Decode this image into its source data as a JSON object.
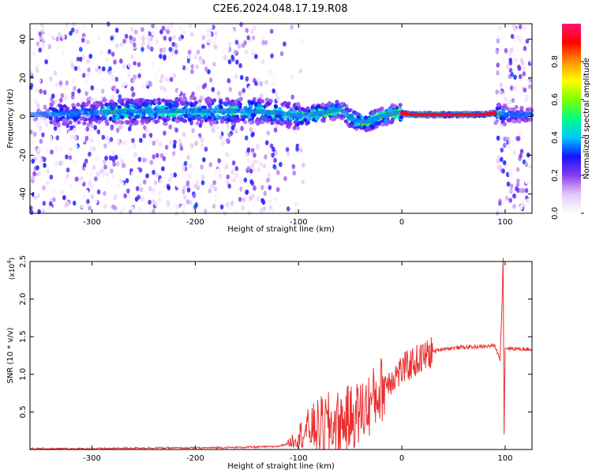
{
  "title": "C2E6.2024.048.17.19.R08",
  "chart_data": [
    {
      "type": "heatmap",
      "xlabel": "Height of straight line (km)",
      "ylabel": "Frequency (Hz)",
      "xlim": [
        -360,
        126
      ],
      "ylim": [
        -50,
        48
      ],
      "xticks": [
        -300,
        -200,
        -100,
        0,
        100
      ],
      "yticks": [
        -40,
        -20,
        0,
        20,
        40
      ],
      "colorbar": {
        "label": "Normalized spectral amplitude",
        "range": [
          0,
          1
        ],
        "ticks": [
          "0.0",
          "0.2",
          "0.4",
          "0.6",
          "0.8"
        ],
        "colors": [
          "#ffffff",
          "#e4c8f8",
          "#8a3cf0",
          "#1414ff",
          "#00c8ff",
          "#00ff80",
          "#80ff00",
          "#ffff00",
          "#ff9000",
          "#ff0000",
          "#ff1470"
        ]
      },
      "ridge": [
        [
          -350,
          1
        ],
        [
          -300,
          2
        ],
        [
          -250,
          3
        ],
        [
          -200,
          3
        ],
        [
          -150,
          3
        ],
        [
          -120,
          2
        ],
        [
          -100,
          0
        ],
        [
          -75,
          2
        ],
        [
          -60,
          4
        ],
        [
          -50,
          -1
        ],
        [
          -35,
          -3
        ],
        [
          -20,
          0
        ],
        [
          -5,
          2
        ],
        [
          10,
          1
        ],
        [
          50,
          1
        ],
        [
          80,
          1
        ],
        [
          90,
          2
        ],
        [
          100,
          1
        ],
        [
          126,
          1
        ]
      ],
      "bands": [
        {
          "x0": -360,
          "x1": -340,
          "amp": 0.2
        },
        {
          "x0": -340,
          "x1": -290,
          "amp": 0.45
        },
        {
          "x0": -290,
          "x1": -100,
          "amp": 0.6
        },
        {
          "x0": -100,
          "x1": -30,
          "amp": 0.7
        },
        {
          "x0": -30,
          "x1": 0,
          "amp": 0.75
        },
        {
          "x0": 0,
          "x1": 85,
          "amp": 0.95
        },
        {
          "x0": 85,
          "x1": 100,
          "amp": 0.6
        },
        {
          "x0": 100,
          "x1": 126,
          "amp": 0.35
        }
      ]
    },
    {
      "type": "line",
      "xlabel": "Height of straight line (km)",
      "ylabel": "SNR (10 * v/v)",
      "scale_label": "(x10",
      "scale_exp": "4",
      "scale_close": ")",
      "xlim": [
        -360,
        126
      ],
      "ylim": [
        0,
        2.5
      ],
      "xticks": [
        -300,
        -200,
        -100,
        0,
        100
      ],
      "yticks": [
        "0.5",
        "1.0",
        "1.5",
        "2.0",
        "2.5"
      ],
      "color": "#e83030",
      "points": [
        [
          -360,
          0.01
        ],
        [
          -300,
          0.01
        ],
        [
          -250,
          0.02
        ],
        [
          -200,
          0.02
        ],
        [
          -150,
          0.03
        ],
        [
          -120,
          0.04
        ],
        [
          -110,
          0.08
        ],
        [
          -100,
          0.18
        ],
        [
          -90,
          0.28
        ],
        [
          -80,
          0.3
        ],
        [
          -70,
          0.32
        ],
        [
          -60,
          0.35
        ],
        [
          -50,
          0.42
        ],
        [
          -40,
          0.5
        ],
        [
          -30,
          0.62
        ],
        [
          -20,
          0.8
        ],
        [
          -10,
          0.95
        ],
        [
          0,
          1.05
        ],
        [
          10,
          1.15
        ],
        [
          20,
          1.22
        ],
        [
          30,
          1.3
        ],
        [
          40,
          1.34
        ],
        [
          60,
          1.36
        ],
        [
          80,
          1.37
        ],
        [
          90,
          1.38
        ],
        [
          95,
          1.2
        ],
        [
          97,
          1.92
        ],
        [
          98,
          2.55
        ],
        [
          99,
          0.2
        ],
        [
          100,
          1.35
        ],
        [
          110,
          1.34
        ],
        [
          126,
          1.33
        ]
      ]
    }
  ]
}
